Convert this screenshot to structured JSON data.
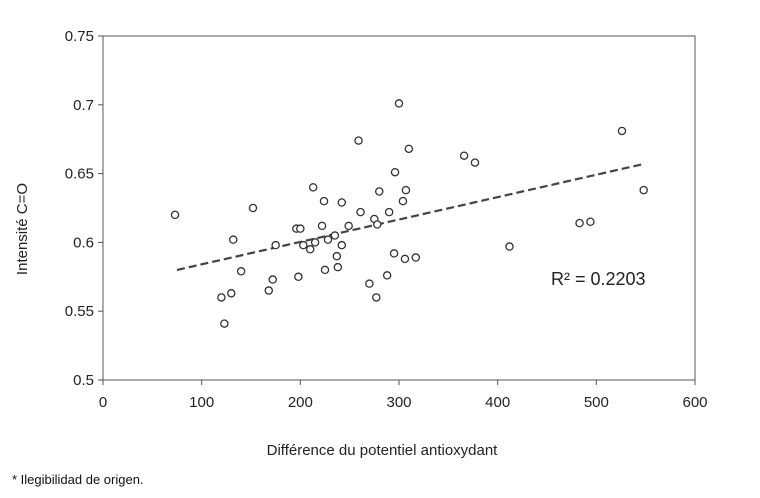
{
  "chart_data": {
    "type": "scatter",
    "xlabel": "Différence du potentiel antioxydant",
    "ylabel": "Intensité C=O",
    "xlim": [
      0,
      600
    ],
    "ylim": [
      0.5,
      0.75
    ],
    "x_ticks": [
      "0",
      "100",
      "200",
      "300",
      "400",
      "500",
      "600"
    ],
    "y_ticks": [
      "0.5",
      "0.55",
      "0.6",
      "0.65",
      "0.7",
      "0.75"
    ],
    "grid": false,
    "marker": "open-circle",
    "trendline": {
      "style": "dashed",
      "x": [
        75,
        548
      ],
      "y": [
        0.58,
        0.657
      ]
    },
    "annotation": "R² = 0.2203",
    "points": [
      [
        73,
        0.62
      ],
      [
        120,
        0.56
      ],
      [
        123,
        0.541
      ],
      [
        130,
        0.563
      ],
      [
        132,
        0.602
      ],
      [
        140,
        0.579
      ],
      [
        152,
        0.625
      ],
      [
        168,
        0.565
      ],
      [
        172,
        0.573
      ],
      [
        175,
        0.598
      ],
      [
        196,
        0.61
      ],
      [
        198,
        0.575
      ],
      [
        200,
        0.61
      ],
      [
        203,
        0.598
      ],
      [
        210,
        0.595
      ],
      [
        213,
        0.64
      ],
      [
        215,
        0.6
      ],
      [
        222,
        0.612
      ],
      [
        224,
        0.63
      ],
      [
        225,
        0.58
      ],
      [
        228,
        0.602
      ],
      [
        235,
        0.605
      ],
      [
        237,
        0.59
      ],
      [
        238,
        0.582
      ],
      [
        242,
        0.598
      ],
      [
        242,
        0.629
      ],
      [
        249,
        0.612
      ],
      [
        259,
        0.674
      ],
      [
        261,
        0.622
      ],
      [
        270,
        0.57
      ],
      [
        275,
        0.617
      ],
      [
        277,
        0.56
      ],
      [
        278,
        0.613
      ],
      [
        280,
        0.637
      ],
      [
        288,
        0.576
      ],
      [
        290,
        0.622
      ],
      [
        295,
        0.592
      ],
      [
        296,
        0.651
      ],
      [
        300,
        0.701
      ],
      [
        304,
        0.63
      ],
      [
        306,
        0.588
      ],
      [
        307,
        0.638
      ],
      [
        310,
        0.668
      ],
      [
        317,
        0.589
      ],
      [
        366,
        0.663
      ],
      [
        377,
        0.658
      ],
      [
        412,
        0.597
      ],
      [
        483,
        0.614
      ],
      [
        494,
        0.615
      ],
      [
        526,
        0.681
      ],
      [
        548,
        0.638
      ]
    ]
  },
  "footnote": "* Ilegibilidad de origen."
}
